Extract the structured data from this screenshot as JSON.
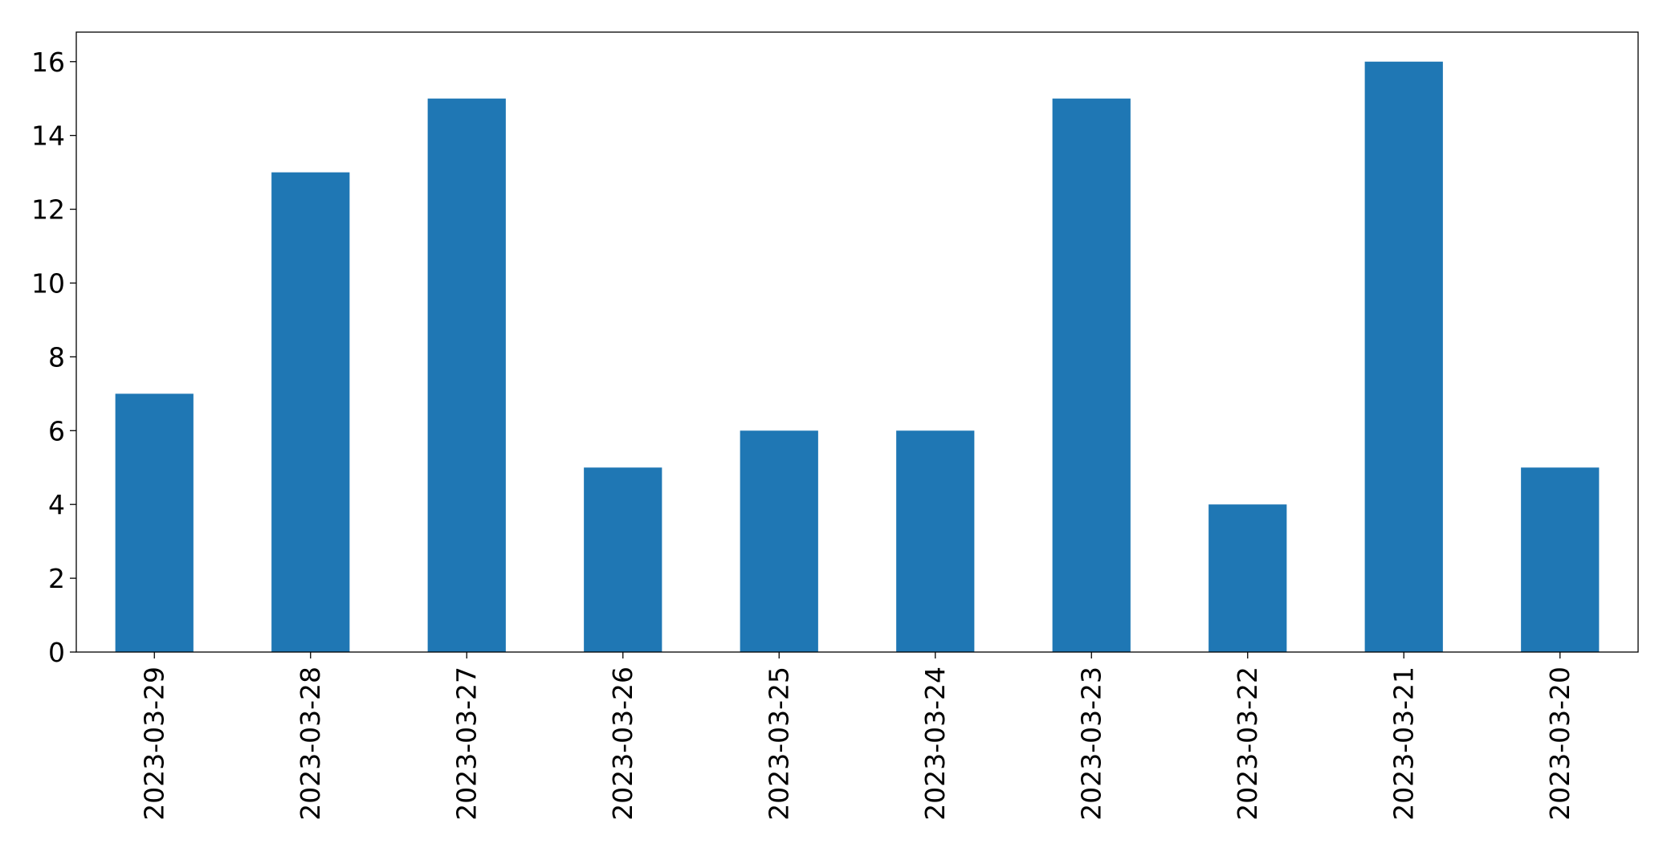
{
  "chart_data": {
    "type": "bar",
    "title": "",
    "xlabel": "",
    "ylabel": "",
    "categories": [
      "2023-03-29",
      "2023-03-28",
      "2023-03-27",
      "2023-03-26",
      "2023-03-25",
      "2023-03-24",
      "2023-03-23",
      "2023-03-22",
      "2023-03-21",
      "2023-03-20"
    ],
    "values": [
      7,
      13,
      15,
      5,
      6,
      6,
      15,
      4,
      16,
      5
    ],
    "ylim": [
      0,
      16.8
    ],
    "yticks": [
      "0",
      "2",
      "4",
      "6",
      "8",
      "10",
      "12",
      "14",
      "16"
    ],
    "grid": false,
    "legend": "none",
    "bar_color": "#1f77b4",
    "x_tick_rotation": "vertical"
  }
}
